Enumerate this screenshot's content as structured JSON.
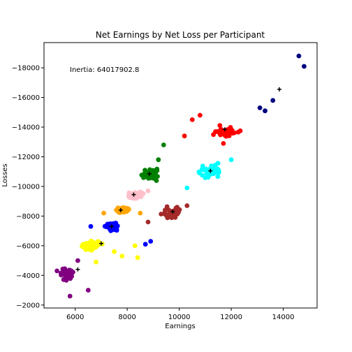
{
  "chart_data": {
    "type": "scatter",
    "title": "Net Earnings by Net Loss per Participant",
    "xlabel": "Earnings",
    "ylabel": "Losses",
    "annotation": "Inertia: 64017902.8",
    "xlim": [
      4800,
      15300
    ],
    "ylim": [
      -1800,
      -19700
    ],
    "y_inverted": true,
    "x_ticks": [
      6000,
      8000,
      10000,
      12000,
      14000
    ],
    "x_tick_labels": [
      "6000",
      "8000",
      "10000",
      "12000",
      "14000"
    ],
    "y_ticks": [
      -2000,
      -4000,
      -6000,
      -8000,
      -10000,
      -12000,
      -14000,
      -16000,
      -18000
    ],
    "y_tick_labels": [
      "−2000",
      "−4000",
      "−6000",
      "−8000",
      "−10000",
      "−12000",
      "−14000",
      "−16000",
      "−18000"
    ],
    "grid": false,
    "legend": false,
    "clusters": [
      {
        "color": "#800080",
        "center": [
          5700,
          -4100
        ],
        "spread": [
          350,
          500
        ],
        "count": 45,
        "extra": [
          [
            5800,
            -2600
          ],
          [
            6500,
            -3000
          ],
          [
            5300,
            -4300
          ],
          [
            6100,
            -5000
          ]
        ]
      },
      {
        "color": "#ffff00",
        "center": [
          6600,
          -6000
        ],
        "spread": [
          450,
          350
        ],
        "count": 70,
        "extra": [
          [
            7500,
            -5600
          ],
          [
            7800,
            -5300
          ],
          [
            8300,
            -6000
          ],
          [
            8400,
            -5200
          ],
          [
            6800,
            -4900
          ]
        ]
      },
      {
        "color": "#0000ff",
        "center": [
          7400,
          -7300
        ],
        "spread": [
          350,
          300
        ],
        "count": 90,
        "extra": [
          [
            8700,
            -6100
          ],
          [
            8900,
            -6300
          ],
          [
            6600,
            -7300
          ]
        ]
      },
      {
        "color": "#ffa500",
        "center": [
          7800,
          -8400
        ],
        "spread": [
          350,
          250
        ],
        "count": 80,
        "extra": [
          [
            7100,
            -8200
          ],
          [
            8500,
            -8200
          ]
        ]
      },
      {
        "color": "#ffc0cb",
        "center": [
          8300,
          -9400
        ],
        "spread": [
          350,
          250
        ],
        "count": 70,
        "extra": [
          [
            8800,
            -9700
          ]
        ]
      },
      {
        "color": "#008000",
        "center": [
          8900,
          -10800
        ],
        "spread": [
          450,
          450
        ],
        "count": 60,
        "extra": [
          [
            9400,
            -12800
          ],
          [
            9200,
            -11800
          ]
        ]
      },
      {
        "color": "#a52a2a",
        "center": [
          9700,
          -8200
        ],
        "spread": [
          650,
          500
        ],
        "count": 30,
        "extra": [
          [
            8800,
            -7600
          ],
          [
            10300,
            -8700
          ]
        ]
      },
      {
        "color": "#00ffff",
        "center": [
          11200,
          -11000
        ],
        "spread": [
          550,
          500
        ],
        "count": 55,
        "extra": [
          [
            10300,
            -9900
          ],
          [
            12000,
            -11800
          ]
        ]
      },
      {
        "color": "#ff0000",
        "center": [
          11800,
          -13700
        ],
        "spread": [
          800,
          500
        ],
        "count": 35,
        "extra": [
          [
            10500,
            -14500
          ],
          [
            10800,
            -14800
          ],
          [
            10200,
            -13400
          ],
          [
            11700,
            -12900
          ]
        ]
      },
      {
        "color": "#000080",
        "center": [
          13900,
          -16500
        ],
        "spread": [
          500,
          700
        ],
        "count": 0,
        "extra": [
          [
            14600,
            -18800
          ],
          [
            14800,
            -18100
          ],
          [
            13600,
            -15800
          ],
          [
            13300,
            -15100
          ],
          [
            13100,
            -15300
          ]
        ]
      }
    ],
    "centroids": [
      [
        6100,
        -4400
      ],
      [
        7000,
        -6150
      ],
      [
        7400,
        -7300
      ],
      [
        7750,
        -8400
      ],
      [
        8250,
        -9450
      ],
      [
        8850,
        -10850
      ],
      [
        9750,
        -8300
      ],
      [
        11200,
        -11050
      ],
      [
        11750,
        -13850
      ],
      [
        13850,
        -16550
      ]
    ]
  }
}
